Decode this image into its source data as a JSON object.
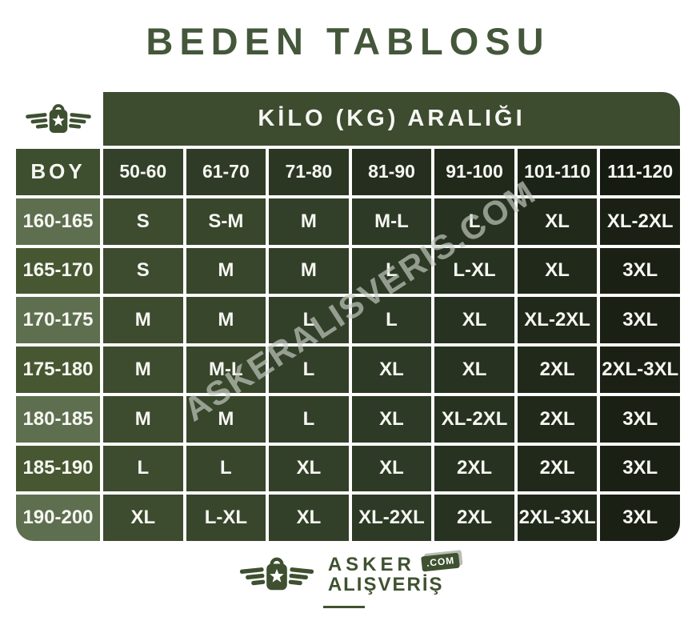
{
  "title": "BEDEN TABLOSU",
  "table": {
    "kilo_header": "KİLO (KG) ARALIĞI",
    "boy_header": "BOY",
    "weight_columns": [
      "50-60",
      "61-70",
      "71-80",
      "81-90",
      "91-100",
      "101-110",
      "111-120"
    ],
    "rows": [
      {
        "height": "160-165",
        "sizes": [
          "S",
          "S-M",
          "M",
          "M-L",
          "L",
          "XL",
          "XL-2XL"
        ]
      },
      {
        "height": "165-170",
        "sizes": [
          "S",
          "M",
          "M",
          "L",
          "L-XL",
          "XL",
          "3XL"
        ]
      },
      {
        "height": "170-175",
        "sizes": [
          "M",
          "M",
          "L",
          "L",
          "XL",
          "XL-2XL",
          "3XL"
        ]
      },
      {
        "height": "175-180",
        "sizes": [
          "M",
          "M-L",
          "L",
          "XL",
          "XL",
          "2XL",
          "2XL-3XL"
        ]
      },
      {
        "height": "180-185",
        "sizes": [
          "M",
          "M",
          "L",
          "XL",
          "XL-2XL",
          "2XL",
          "3XL"
        ]
      },
      {
        "height": "185-190",
        "sizes": [
          "L",
          "L",
          "XL",
          "XL",
          "2XL",
          "2XL",
          "3XL"
        ]
      },
      {
        "height": "190-200",
        "sizes": [
          "XL",
          "L-XL",
          "XL",
          "XL-2XL",
          "2XL",
          "2XL-3XL",
          "3XL"
        ]
      }
    ]
  },
  "chart_data": {
    "type": "table",
    "title": "BEDEN TABLOSU",
    "column_group_header": "KİLO (KG) ARALIĞI",
    "columns": [
      "BOY",
      "50-60",
      "61-70",
      "71-80",
      "81-90",
      "91-100",
      "101-110",
      "111-120"
    ],
    "rows": [
      [
        "160-165",
        "S",
        "S-M",
        "M",
        "M-L",
        "L",
        "XL",
        "XL-2XL"
      ],
      [
        "165-170",
        "S",
        "M",
        "M",
        "L",
        "L-XL",
        "XL",
        "3XL"
      ],
      [
        "170-175",
        "M",
        "M",
        "L",
        "L",
        "XL",
        "XL-2XL",
        "3XL"
      ],
      [
        "175-180",
        "M",
        "M-L",
        "L",
        "XL",
        "XL",
        "2XL",
        "2XL-3XL"
      ],
      [
        "180-185",
        "M",
        "M",
        "L",
        "XL",
        "XL-2XL",
        "2XL",
        "3XL"
      ],
      [
        "185-190",
        "L",
        "L",
        "XL",
        "XL",
        "2XL",
        "2XL",
        "3XL"
      ],
      [
        "190-200",
        "XL",
        "L-XL",
        "XL",
        "XL-2XL",
        "2XL",
        "2XL-3XL",
        "3XL"
      ]
    ]
  },
  "watermark": "ASKERALISVERIS.COM",
  "footer": {
    "brand_line1": "ASKER",
    "brand_line2": "ALIŞVERİŞ",
    "domain_badge": ".COM"
  },
  "icons": {
    "brand_logo": "winged-shopping-bag-with-star-icon"
  },
  "colors": {
    "title_green": "#44573a",
    "kilo_bg": "#3d4b2f",
    "boy_bg": "#3e4f2f",
    "height_col_light": "#5e6f4f",
    "height_col_dark": "#475731",
    "header_gradient": [
      "#33402a",
      "#2f3b26",
      "#2b3623",
      "#262f1f",
      "#20291a",
      "#1b2316",
      "#151b11"
    ],
    "cell_gradient": [
      "#3d4b2e",
      "#38462c",
      "#334029",
      "#2d3a25",
      "#273220",
      "#21291a",
      "#1a2014"
    ],
    "text_light": "#f6f6f2",
    "watermark_gray": "#c6cbc2",
    "footer_green": "#3f5230"
  }
}
